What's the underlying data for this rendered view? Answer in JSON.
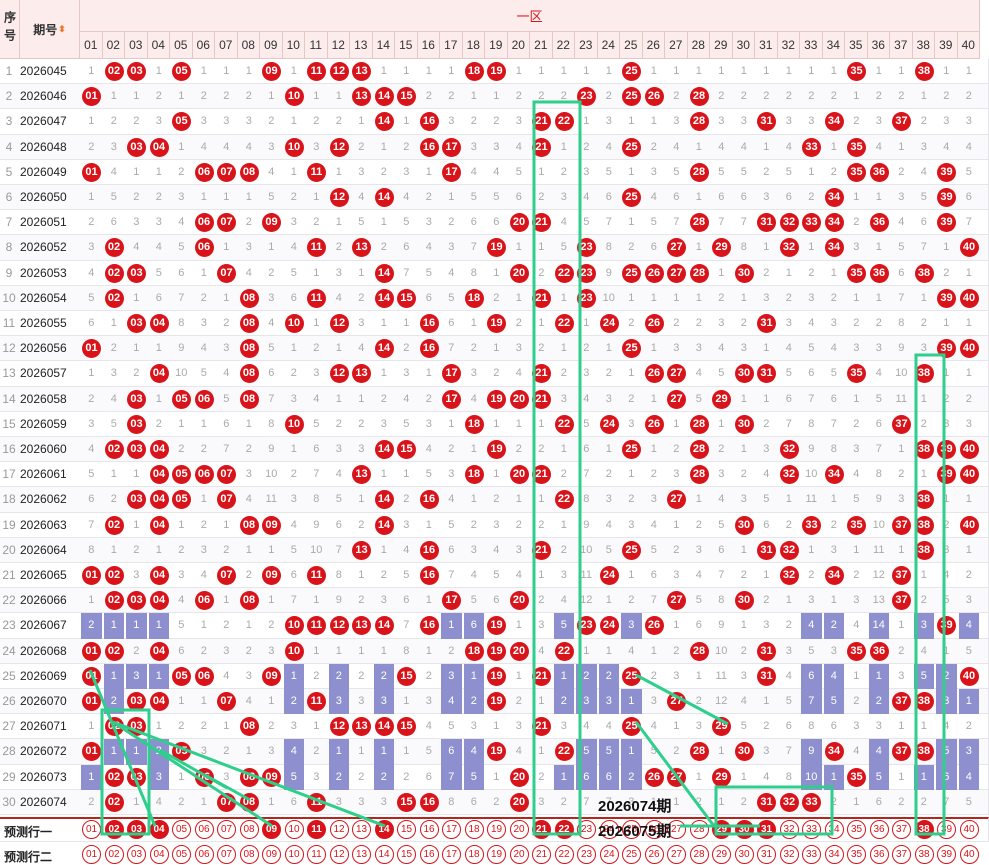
{
  "headers": {
    "seq": "序号",
    "period": "期号",
    "zone": "一区",
    "sort_icon": "sort-icon"
  },
  "columns": [
    "01",
    "02",
    "03",
    "04",
    "05",
    "06",
    "07",
    "08",
    "09",
    "10",
    "11",
    "12",
    "13",
    "14",
    "15",
    "16",
    "17",
    "18",
    "19",
    "20",
    "21",
    "22",
    "23",
    "24",
    "25",
    "26",
    "27",
    "28",
    "29",
    "30",
    "31",
    "32",
    "33",
    "34",
    "35",
    "36",
    "37",
    "38",
    "39",
    "40"
  ],
  "rows": [
    {
      "n": "1",
      "period": "2026045",
      "hits": [
        2,
        3,
        5,
        9,
        11,
        12,
        13,
        18,
        19,
        25,
        35,
        38
      ]
    },
    {
      "n": "2",
      "period": "2026046",
      "hits": [
        1,
        10,
        13,
        14,
        15,
        23,
        25,
        26,
        28
      ]
    },
    {
      "n": "3",
      "period": "2026047",
      "hits": [
        5,
        14,
        16,
        21,
        22,
        28,
        31,
        34,
        37
      ]
    },
    {
      "n": "4",
      "period": "2026048",
      "hits": [
        3,
        4,
        10,
        12,
        16,
        17,
        21,
        25,
        33,
        35
      ]
    },
    {
      "n": "5",
      "period": "2026049",
      "hits": [
        1,
        6,
        7,
        8,
        11,
        17,
        28,
        35,
        36,
        39
      ]
    },
    {
      "n": "6",
      "period": "2026050",
      "hits": [
        12,
        14,
        25,
        34,
        39
      ]
    },
    {
      "n": "7",
      "period": "2026051",
      "hits": [
        6,
        7,
        9,
        20,
        21,
        28,
        31,
        32,
        33,
        34,
        36,
        39
      ]
    },
    {
      "n": "8",
      "period": "2026052",
      "hits": [
        2,
        6,
        11,
        13,
        19,
        23,
        27,
        29,
        32,
        34,
        40
      ]
    },
    {
      "n": "9",
      "period": "2026053",
      "hits": [
        2,
        3,
        7,
        14,
        20,
        22,
        23,
        25,
        26,
        27,
        28,
        30,
        35,
        36,
        38
      ]
    },
    {
      "n": "10",
      "period": "2026054",
      "hits": [
        2,
        8,
        11,
        14,
        15,
        18,
        21,
        23,
        39,
        40
      ]
    },
    {
      "n": "11",
      "period": "2026055",
      "hits": [
        3,
        4,
        8,
        10,
        12,
        16,
        19,
        22,
        24,
        26,
        31
      ]
    },
    {
      "n": "12",
      "period": "2026056",
      "hits": [
        1,
        8,
        14,
        16,
        25,
        39,
        40
      ]
    },
    {
      "n": "13",
      "period": "2026057",
      "hits": [
        4,
        8,
        12,
        13,
        17,
        21,
        26,
        27,
        30,
        31,
        35,
        38
      ]
    },
    {
      "n": "14",
      "period": "2026058",
      "hits": [
        3,
        5,
        6,
        8,
        17,
        19,
        20,
        21,
        27,
        29
      ]
    },
    {
      "n": "15",
      "period": "2026059",
      "hits": [
        3,
        10,
        18,
        22,
        24,
        26,
        28,
        30,
        37
      ]
    },
    {
      "n": "16",
      "period": "2026060",
      "hits": [
        2,
        3,
        4,
        14,
        15,
        19,
        25,
        28,
        32,
        38,
        39,
        40
      ]
    },
    {
      "n": "17",
      "period": "2026061",
      "hits": [
        4,
        5,
        6,
        7,
        13,
        18,
        20,
        21,
        28,
        32,
        34,
        39,
        40
      ]
    },
    {
      "n": "18",
      "period": "2026062",
      "hits": [
        3,
        4,
        5,
        7,
        14,
        16,
        22,
        27,
        38
      ]
    },
    {
      "n": "19",
      "period": "2026063",
      "hits": [
        2,
        4,
        8,
        9,
        14,
        30,
        33,
        35,
        37,
        38,
        40
      ]
    },
    {
      "n": "20",
      "period": "2026064",
      "hits": [
        13,
        16,
        21,
        25,
        31,
        32,
        38
      ]
    },
    {
      "n": "21",
      "period": "2026065",
      "hits": [
        1,
        2,
        4,
        7,
        9,
        11,
        16,
        24,
        32,
        34,
        37
      ]
    },
    {
      "n": "22",
      "period": "2026066",
      "hits": [
        2,
        3,
        4,
        6,
        8,
        17,
        20,
        27,
        30,
        37
      ]
    },
    {
      "n": "23",
      "period": "2026067",
      "hits": [
        10,
        11,
        12,
        13,
        14,
        16,
        19,
        23,
        24,
        26,
        39
      ]
    },
    {
      "n": "24",
      "period": "2026068",
      "hits": [
        1,
        2,
        4,
        10,
        18,
        19,
        20,
        22,
        28,
        31,
        35,
        36
      ]
    },
    {
      "n": "25",
      "period": "2026069",
      "hits": [
        1,
        5,
        6,
        9,
        15,
        19,
        21,
        25,
        31,
        40
      ]
    },
    {
      "n": "26",
      "period": "2026070",
      "hits": [
        1,
        3,
        4,
        7,
        11,
        19,
        27,
        37,
        38
      ]
    },
    {
      "n": "27",
      "period": "2026071",
      "hits": [
        2,
        3,
        8,
        12,
        13,
        14,
        15,
        21,
        25,
        29
      ]
    },
    {
      "n": "28",
      "period": "2026072",
      "hits": [
        1,
        5,
        19,
        22,
        28,
        30,
        34,
        37,
        38
      ]
    },
    {
      "n": "29",
      "period": "2026073",
      "hits": [
        2,
        3,
        6,
        8,
        9,
        20,
        26,
        27,
        29,
        35
      ]
    },
    {
      "n": "30",
      "period": "2026074",
      "hits": [
        2,
        7,
        8,
        11,
        15,
        16,
        20,
        31,
        32,
        33
      ]
    }
  ],
  "pred1": {
    "label": "预测行一",
    "hits": [
      2,
      3,
      4,
      9,
      11,
      14,
      21,
      22,
      29,
      30,
      31,
      38
    ]
  },
  "pred2": {
    "label": "预测行二"
  },
  "overlays": {
    "a": "2026074期",
    "b": "2026075期"
  },
  "colors": {
    "ball": "#d8141a",
    "bar": "#8e8fcf",
    "header_bg": "#fdecec",
    "box": "#2ecf8c"
  }
}
